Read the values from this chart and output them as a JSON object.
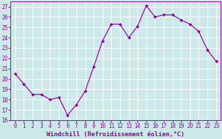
{
  "x": [
    0,
    1,
    2,
    3,
    4,
    5,
    6,
    7,
    8,
    9,
    10,
    11,
    12,
    13,
    14,
    15,
    16,
    17,
    18,
    19,
    20,
    21,
    22,
    23
  ],
  "y": [
    20.5,
    19.5,
    18.5,
    18.5,
    18.0,
    18.2,
    16.5,
    17.5,
    18.8,
    21.2,
    23.7,
    25.3,
    25.3,
    24.0,
    25.1,
    27.1,
    26.0,
    26.2,
    26.2,
    25.7,
    25.3,
    24.6,
    22.8,
    21.7
  ],
  "line_color": "#990099",
  "marker": "D",
  "marker_size": 2,
  "bg_color": "#cce8e8",
  "grid_color": "#ffffff",
  "xlabel": "Windchill (Refroidissement éolien,°C)",
  "ylim": [
    16,
    27.5
  ],
  "xlim": [
    -0.5,
    23.5
  ],
  "yticks": [
    16,
    17,
    18,
    19,
    20,
    21,
    22,
    23,
    24,
    25,
    26,
    27
  ],
  "xticks": [
    0,
    1,
    2,
    3,
    4,
    5,
    6,
    7,
    8,
    9,
    10,
    11,
    12,
    13,
    14,
    15,
    16,
    17,
    18,
    19,
    20,
    21,
    22,
    23
  ],
  "tick_fontsize": 5.5,
  "xlabel_fontsize": 6.5,
  "line_width": 0.9
}
